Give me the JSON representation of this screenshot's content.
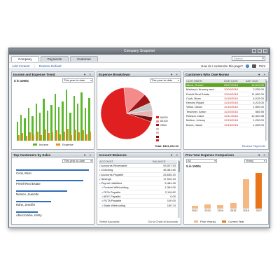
{
  "window": {
    "title": "Company Snapshot",
    "tabs": [
      "Company",
      "Payments",
      "Customer"
    ],
    "search_placeholder": "Search",
    "toolbar": {
      "add_content": "Add Content",
      "restore_default": "Restore Default",
      "customize_help": "How do I customize this page?",
      "print": "Print"
    }
  },
  "income_expense": {
    "title": "Income and Expense Trend",
    "unit_label": "$ in 1000s",
    "period": "This year-to-date",
    "legend_income": "Income",
    "legend_expense": "Expense",
    "colors": {
      "income": "#5ab82b",
      "expense": "#f08c1e"
    },
    "chart_data": {
      "type": "bar",
      "series": [
        {
          "name": "Income",
          "values": [
            20,
            28,
            24,
            35,
            26,
            40,
            30,
            45,
            32,
            38,
            50,
            36,
            42,
            55,
            30,
            48,
            40,
            52,
            35,
            46
          ]
        },
        {
          "name": "Expense",
          "values": [
            6,
            8,
            5,
            9,
            7,
            10,
            6,
            12,
            8,
            9,
            11,
            7,
            10,
            13,
            6,
            12,
            9,
            11,
            7,
            10
          ]
        }
      ],
      "ylim": [
        0,
        60
      ]
    }
  },
  "expense_breakdown": {
    "title": "Expense Breakdown",
    "period": "This year-to-date",
    "legend": [
      "64000",
      "63100",
      "Other",
      "",
      "",
      "",
      ""
    ],
    "total_label": "Total: $341,222.03",
    "chart_data": {
      "type": "pie",
      "values": [
        68,
        14,
        6,
        5,
        4,
        3
      ],
      "colors": [
        "#e02020",
        "#f48a8a",
        "#a01515",
        "#c8c8c8",
        "#e6b3b3",
        "#7a1010"
      ]
    }
  },
  "customers_owe": {
    "title": "Customers Who Owe Money",
    "headers": [
      "CUSTOMER",
      "DUE DATE",
      "AMT DUE"
    ],
    "rows": [
      [
        "Allard, Robert",
        "09/27/2018",
        "14,510.00"
      ],
      [
        "Mackey's Nursery and...",
        "10/04/2018",
        "2,235.00"
      ],
      [
        "Pretell Real Estate",
        "10/24/2018",
        "11,950.00"
      ],
      [
        "Cook, Brian",
        "11/18/2018",
        "4,015.00"
      ],
      [
        "Hendro Riyadi",
        "11/19/2018",
        "4,223.00"
      ],
      [
        "Vitton, David",
        "11/15/2018",
        "1,500.00"
      ],
      [
        "Teschner, Anton",
        "11/25/2018",
        "565.95"
      ],
      [
        "Robson, Darci",
        "12/11/2018",
        "12,420.98"
      ],
      [
        "Melton, Johnny",
        "12/15/2018",
        "1,200.00"
      ],
      [
        "Burch, Jason",
        "12/15/2018",
        "1,005.00"
      ]
    ],
    "footer_link": "Receive Payments"
  },
  "top_customers": {
    "title": "Top Customers by Sales",
    "period": "This year-to-date",
    "names": [
      "Cook, Brian",
      "Pretell Real Estate",
      "Memeo, Jeanette",
      "Rahe, Jennifer",
      "Abercrombie, Kristy"
    ],
    "chart_data": {
      "type": "bar",
      "values": [
        100,
        92,
        70,
        48,
        30
      ]
    }
  },
  "account_balances": {
    "title": "Account Balances",
    "headers": [
      "ACCOUNT",
      "BALANCE"
    ],
    "rows": [
      [
        "• Accounts Receivable",
        "93,007.93"
      ],
      [
        "• Checking",
        "46,381.50"
      ],
      [
        "• Accounts Payable",
        "26,636.10"
      ],
      [
        "• Savings",
        "17,910.19"
      ],
      [
        "• Payroll Liabilities",
        "5,484.45"
      ],
      [
        "   • Federal Withholding",
        "1,364.00"
      ],
      [
        "   • FICA Payable",
        "2,118.82"
      ],
      [
        "   • AEIC Payable",
        "0.00"
      ],
      [
        "   • FUTA Payable",
        "100.00"
      ],
      [
        "   • State Withholding",
        "190.74"
      ]
    ],
    "footer_left": "Select Accounts",
    "footer_right": "Go to Chart of Accounts"
  },
  "prev_year_expense": {
    "title": "Prev Year Expense Comparison",
    "account_select": "All",
    "period_select": "Yearly",
    "unit_label": "$ in 1000s",
    "legend_prior": "Prior Year(s)",
    "legend_current": "Current Year",
    "colors": {
      "prior": "#f4b983",
      "current": "#e8751a"
    },
    "chart_data": {
      "type": "bar",
      "categories": [
        "2012",
        "2013",
        "2014",
        "2015",
        "2016",
        "2017"
      ],
      "values": [
        4,
        6,
        5,
        9,
        45,
        55
      ]
    }
  }
}
